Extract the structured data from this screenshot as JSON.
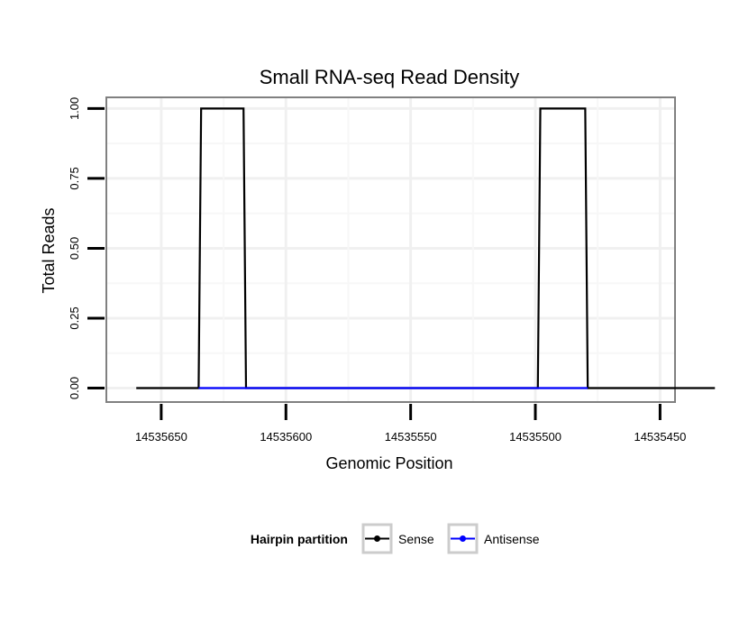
{
  "chart_data": {
    "type": "line",
    "title": "Small RNA-seq Read Density",
    "xlabel": "Genomic Position",
    "ylabel": "Total Reads",
    "x_reversed": true,
    "xlim": [
      14535672,
      14535444
    ],
    "ylim": [
      -0.05,
      1.04
    ],
    "x_ticks": [
      14535650,
      14535600,
      14535550,
      14535500,
      14535450
    ],
    "x_tick_labels": [
      "14535650",
      "14535600",
      "14535550",
      "14535500",
      "14535450"
    ],
    "y_ticks": [
      0,
      0.25,
      0.5,
      0.75,
      1.0
    ],
    "y_tick_labels": [
      "0.00",
      "0.25",
      "0.50",
      "0.75",
      "1.00"
    ],
    "grid": true,
    "legend_position": "bottom",
    "legend_title": "Hairpin partition",
    "series": [
      {
        "name": "Sense",
        "color": "#000000",
        "x": [
          14535660,
          14535635,
          14535634,
          14535617,
          14535616,
          14535499,
          14535498,
          14535480,
          14535479,
          14535428
        ],
        "y": [
          0,
          0,
          1,
          1,
          0,
          0,
          1,
          1,
          0,
          0
        ]
      },
      {
        "name": "Antisense",
        "color": "#0000ff",
        "x": [
          14535635,
          14535616,
          14535498,
          14535479
        ],
        "y": [
          0,
          0,
          0,
          0
        ]
      }
    ]
  }
}
